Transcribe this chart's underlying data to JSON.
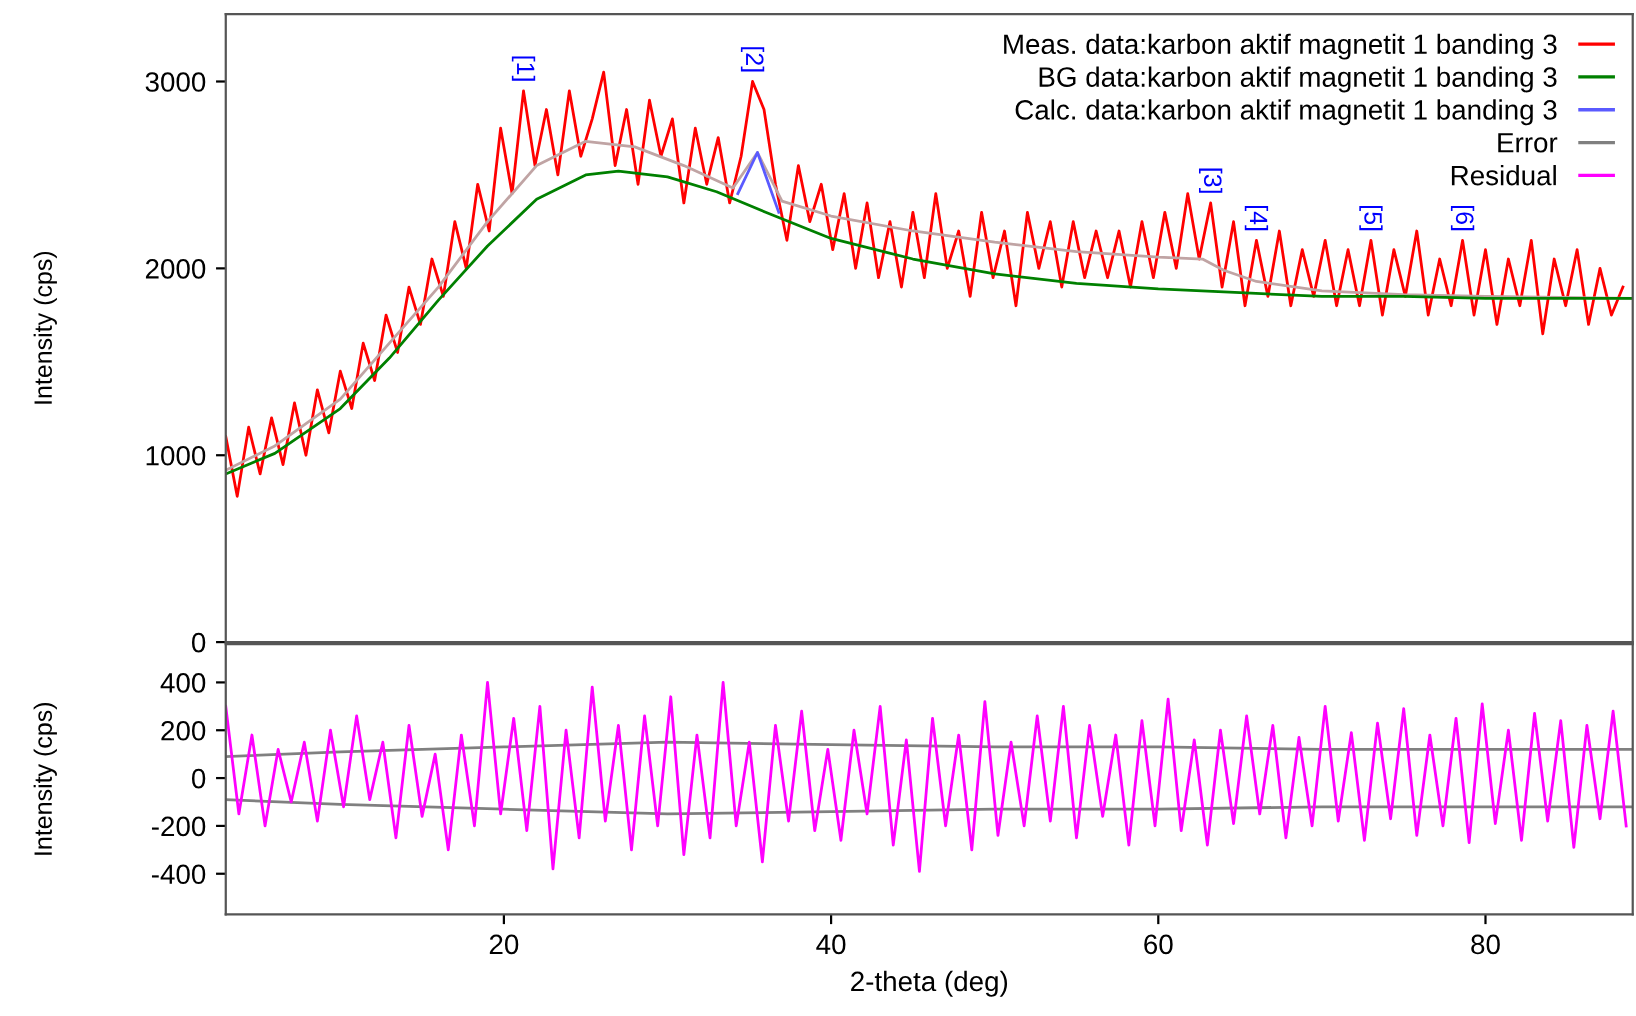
{
  "chart_data": [
    {
      "type": "line",
      "ylabel": "Intensity (cps)",
      "xlim": [
        3,
        89
      ],
      "ylim": [
        0,
        3360
      ],
      "yticks": [
        0,
        1000,
        2000,
        3000
      ],
      "tick_labels": "y",
      "grid": false,
      "legend": "top right",
      "series": [
        {
          "name": "Meas. data:karbon aktif magnetit 1 banding 3",
          "color": "#ff0000",
          "x": [
            3.0,
            3.7,
            4.4,
            5.1,
            5.8,
            6.5,
            7.2,
            7.9,
            8.6,
            9.3,
            10.0,
            10.7,
            11.4,
            12.1,
            12.8,
            13.5,
            14.2,
            14.9,
            15.6,
            16.3,
            17.0,
            17.7,
            18.4,
            19.1,
            19.8,
            20.5,
            21.2,
            21.9,
            22.6,
            23.3,
            24.0,
            24.7,
            25.4,
            26.1,
            26.8,
            27.5,
            28.2,
            28.9,
            29.6,
            30.3,
            31.0,
            31.7,
            32.4,
            33.1,
            33.8,
            34.5,
            35.2,
            35.9,
            36.6,
            37.3,
            38.0,
            38.7,
            39.4,
            40.1,
            40.8,
            41.5,
            42.2,
            42.9,
            43.6,
            44.3,
            45.0,
            45.7,
            46.4,
            47.1,
            47.8,
            48.5,
            49.2,
            49.9,
            50.6,
            51.3,
            52.0,
            52.7,
            53.4,
            54.1,
            54.8,
            55.5,
            56.2,
            56.9,
            57.6,
            58.3,
            59.0,
            59.7,
            60.4,
            61.1,
            61.8,
            62.5,
            63.2,
            63.9,
            64.6,
            65.3,
            66.0,
            66.7,
            67.4,
            68.1,
            68.8,
            69.5,
            70.2,
            70.9,
            71.6,
            72.3,
            73.0,
            73.7,
            74.4,
            75.1,
            75.8,
            76.5,
            77.2,
            77.9,
            78.6,
            79.3,
            80.0,
            80.7,
            81.4,
            82.1,
            82.8,
            83.5,
            84.2,
            84.9,
            85.6,
            86.3,
            87.0,
            87.7,
            88.4
          ],
          "values": [
            1100,
            780,
            1150,
            900,
            1200,
            950,
            1280,
            1000,
            1350,
            1120,
            1450,
            1250,
            1600,
            1400,
            1750,
            1550,
            1900,
            1700,
            2050,
            1850,
            2250,
            2000,
            2450,
            2200,
            2750,
            2400,
            2950,
            2550,
            2850,
            2500,
            2950,
            2600,
            2800,
            3050,
            2550,
            2850,
            2450,
            2900,
            2600,
            2800,
            2350,
            2750,
            2450,
            2700,
            2350,
            2600,
            3000,
            2850,
            2450,
            2150,
            2550,
            2250,
            2450,
            2100,
            2400,
            2000,
            2350,
            1950,
            2250,
            1900,
            2300,
            1950,
            2400,
            2000,
            2200,
            1850,
            2300,
            1950,
            2200,
            1800,
            2300,
            2000,
            2250,
            1900,
            2250,
            1950,
            2200,
            1950,
            2200,
            1900,
            2250,
            1950,
            2300,
            2000,
            2400,
            2050,
            2350,
            1900,
            2250,
            1800,
            2150,
            1850,
            2200,
            1800,
            2100,
            1850,
            2150,
            1800,
            2100,
            1800,
            2150,
            1750,
            2100,
            1850,
            2200,
            1750,
            2050,
            1800,
            2150,
            1750,
            2100,
            1700,
            2050,
            1800,
            2150,
            1650,
            2050,
            1800,
            2100,
            1700,
            2000,
            1750,
            1900
          ]
        },
        {
          "color": "#c0a4a4",
          "x": [
            3,
            6,
            10,
            13,
            16,
            19,
            22,
            25,
            28,
            31,
            34,
            35.5,
            37,
            40,
            45,
            50,
            55,
            60,
            62.7,
            64,
            66,
            70,
            75,
            80,
            89
          ],
          "values": [
            920,
            1050,
            1300,
            1600,
            1900,
            2250,
            2550,
            2680,
            2650,
            2550,
            2430,
            2620,
            2360,
            2280,
            2200,
            2140,
            2090,
            2060,
            2050,
            1990,
            1930,
            1880,
            1860,
            1850,
            1840
          ]
        },
        {
          "name": "BG data:karbon aktif magnetit 1 banding 3",
          "color": "#008000",
          "x": [
            3,
            6,
            10,
            13,
            16,
            19,
            22,
            25,
            27,
            30,
            33,
            36,
            40,
            45,
            50,
            55,
            60,
            65,
            70,
            75,
            80,
            89
          ],
          "values": [
            900,
            1010,
            1250,
            1520,
            1830,
            2120,
            2370,
            2500,
            2520,
            2490,
            2410,
            2300,
            2160,
            2050,
            1970,
            1920,
            1890,
            1870,
            1850,
            1850,
            1840,
            1840
          ]
        },
        {
          "name": "Calc. data:karbon aktif magnetit 1 banding 3",
          "color": "#5a5aff",
          "x": [
            34.3,
            35.5,
            36.8
          ],
          "values": [
            2400,
            2620,
            2300
          ]
        }
      ],
      "annotations": [
        {
          "text": "[1]",
          "x": 21.2,
          "y": 2950
        },
        {
          "text": "[2]",
          "x": 35.2,
          "y": 3000
        },
        {
          "text": "[3]",
          "x": 63.2,
          "y": 2350
        },
        {
          "text": "[4]",
          "x": 66.0,
          "y": 2150
        },
        {
          "text": "[5]",
          "x": 73.0,
          "y": 2150
        },
        {
          "text": "[6]",
          "x": 78.6,
          "y": 2150
        }
      ]
    },
    {
      "type": "line",
      "ylabel": "Intensity (cps)",
      "xlabel": "2-theta (deg)",
      "xlim": [
        3,
        89
      ],
      "ylim": [
        -570,
        560
      ],
      "xticks": [
        20,
        40,
        60,
        80
      ],
      "yticks": [
        -400,
        -200,
        0,
        200,
        400
      ],
      "grid": false,
      "legend": "top right",
      "series": [
        {
          "name": "Error",
          "color": "#808080",
          "x": [
            3,
            10,
            20,
            30,
            40,
            50,
            60,
            70,
            80,
            89
          ],
          "values": [
            90,
            110,
            130,
            150,
            140,
            130,
            130,
            120,
            120,
            120
          ]
        },
        {
          "color": "#808080",
          "x": [
            3,
            10,
            20,
            30,
            40,
            50,
            60,
            70,
            80,
            89
          ],
          "values": [
            -90,
            -110,
            -130,
            -150,
            -140,
            -130,
            -130,
            -120,
            -120,
            -120
          ]
        },
        {
          "name": "Residual",
          "color": "#ff00ff",
          "x": [
            3.0,
            3.8,
            4.6,
            5.4,
            6.2,
            7.0,
            7.8,
            8.6,
            9.4,
            10.2,
            11.0,
            11.8,
            12.6,
            13.4,
            14.2,
            15.0,
            15.8,
            16.6,
            17.4,
            18.2,
            19.0,
            19.8,
            20.6,
            21.4,
            22.2,
            23.0,
            23.8,
            24.6,
            25.4,
            26.2,
            27.0,
            27.8,
            28.6,
            29.4,
            30.2,
            31.0,
            31.8,
            32.6,
            33.4,
            34.2,
            35.0,
            35.8,
            36.6,
            37.4,
            38.2,
            39.0,
            39.8,
            40.6,
            41.4,
            42.2,
            43.0,
            43.8,
            44.6,
            45.4,
            46.2,
            47.0,
            47.8,
            48.6,
            49.4,
            50.2,
            51.0,
            51.8,
            52.6,
            53.4,
            54.2,
            55.0,
            55.8,
            56.6,
            57.4,
            58.2,
            59.0,
            59.8,
            60.6,
            61.4,
            62.2,
            63.0,
            63.8,
            64.6,
            65.4,
            66.2,
            67.0,
            67.8,
            68.6,
            69.4,
            70.2,
            71.0,
            71.8,
            72.6,
            73.4,
            74.2,
            75.0,
            75.8,
            76.6,
            77.4,
            78.2,
            79.0,
            79.8,
            80.6,
            81.4,
            82.2,
            83.0,
            83.8,
            84.6,
            85.4,
            86.2,
            87.0,
            87.8,
            88.6
          ],
          "values": [
            300,
            -150,
            180,
            -200,
            120,
            -100,
            150,
            -180,
            200,
            -120,
            260,
            -90,
            150,
            -250,
            220,
            -160,
            100,
            -300,
            180,
            -200,
            400,
            -150,
            250,
            -220,
            300,
            -380,
            200,
            -250,
            380,
            -180,
            220,
            -300,
            260,
            -200,
            340,
            -320,
            180,
            -250,
            400,
            -200,
            150,
            -350,
            220,
            -180,
            280,
            -220,
            120,
            -260,
            200,
            -150,
            300,
            -280,
            160,
            -390,
            250,
            -200,
            180,
            -300,
            320,
            -240,
            150,
            -200,
            260,
            -180,
            300,
            -250,
            220,
            -160,
            180,
            -280,
            240,
            -200,
            330,
            -220,
            160,
            -280,
            200,
            -190,
            260,
            -150,
            220,
            -250,
            170,
            -200,
            300,
            -180,
            190,
            -260,
            230,
            -170,
            290,
            -240,
            180,
            -200,
            250,
            -270,
            310,
            -190,
            200,
            -260,
            270,
            -180,
            240,
            -290,
            220,
            -170,
            280,
            -200
          ]
        }
      ]
    }
  ]
}
